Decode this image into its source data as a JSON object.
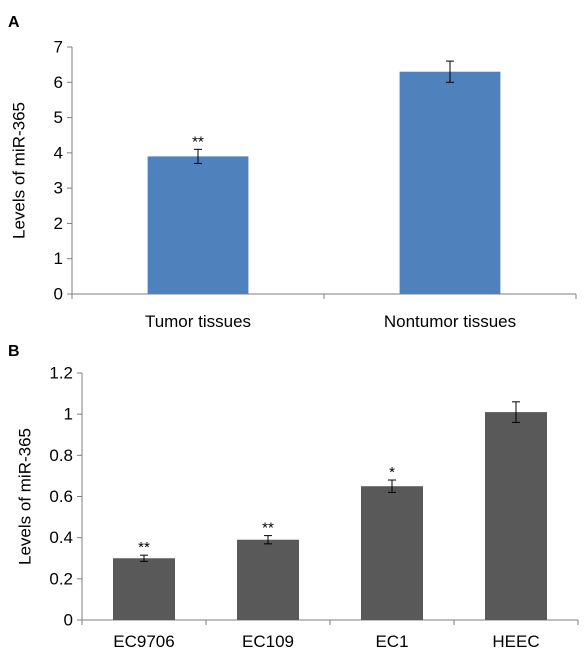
{
  "chart_data": [
    {
      "type": "bar",
      "panel_label": "A",
      "categories": [
        "Tumor tissues",
        "Nontumor tissues"
      ],
      "values": [
        3.9,
        6.3
      ],
      "errors": [
        0.2,
        0.3
      ],
      "significance": [
        "**",
        ""
      ],
      "ylabel": "Levels of miR-365",
      "ylim": [
        0,
        7
      ],
      "yticks": [
        0,
        1,
        2,
        3,
        4,
        5,
        6,
        7
      ],
      "ytick_labels": [
        "0",
        "1",
        "2",
        "3",
        "4",
        "5",
        "6",
        "7"
      ],
      "bar_color": "#4f81bd",
      "grid": false
    },
    {
      "type": "bar",
      "panel_label": "B",
      "categories": [
        "EC9706",
        "EC109",
        "EC1",
        "HEEC"
      ],
      "values": [
        0.3,
        0.39,
        0.65,
        1.01
      ],
      "errors": [
        0.015,
        0.02,
        0.03,
        0.05
      ],
      "significance": [
        "**",
        "**",
        "*",
        ""
      ],
      "ylabel": "Levels of  miR-365",
      "ylim": [
        0,
        1.2
      ],
      "yticks": [
        0,
        0.2,
        0.4,
        0.6,
        0.8,
        1.0,
        1.2
      ],
      "ytick_labels": [
        "0",
        "0.2",
        "0.4",
        "0.6",
        "0.8",
        "1",
        "1.2"
      ],
      "bar_color": "#595959",
      "grid": false
    }
  ]
}
